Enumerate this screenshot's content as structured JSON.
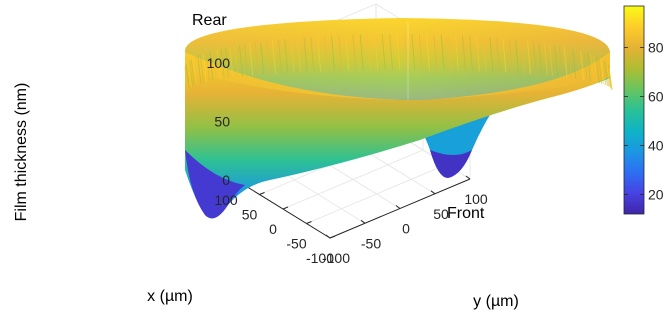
{
  "chart_data": {
    "type": "surface3d",
    "title": "",
    "zlabel": "Film thickness (nm)",
    "xlabel": "x (µm)",
    "ylabel": "y (µm)",
    "x_ticks": [
      "-100",
      "-50",
      "0",
      "50",
      "100"
    ],
    "y_ticks": [
      "-100",
      "-50",
      "0",
      "50",
      "100"
    ],
    "z_ticks": [
      "0",
      "50",
      "100"
    ],
    "xlim": [
      -100,
      100
    ],
    "ylim": [
      -100,
      100
    ],
    "zlim": [
      0,
      100
    ],
    "grid": true,
    "annotations": [
      {
        "name": "rear",
        "text": "Rear"
      },
      {
        "name": "front",
        "text": "Front"
      }
    ],
    "colorbar": {
      "ticks": [
        "20",
        "40",
        "60",
        "80"
      ],
      "range": [
        12,
        97
      ],
      "colormap": "parula",
      "colors": [
        "#3e26a8",
        "#4742e3",
        "#2d6ff3",
        "#1c97e2",
        "#0eb4c5",
        "#2ac196",
        "#69c45f",
        "#b0bd32",
        "#e6b235",
        "#fdcd2a",
        "#f9fb15"
      ]
    },
    "surface": {
      "shape": "annular film (ring)",
      "rim_thickness_range": [
        75,
        97
      ],
      "inner_bottom_thickness_range": [
        12,
        40
      ],
      "min_thickness_locations": [
        "front-left",
        "front-right"
      ]
    }
  }
}
